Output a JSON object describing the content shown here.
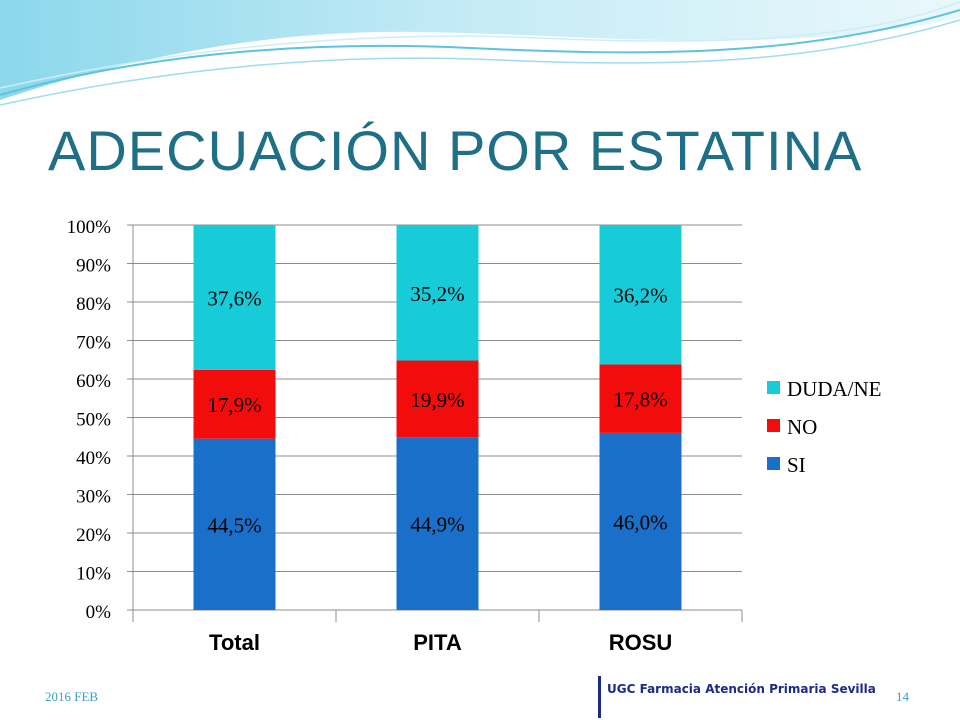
{
  "slide": {
    "title": "ADECUACIÓN POR ESTATINA",
    "footer_date": "2016 FEB",
    "footer_org": "UGC Farmacia Atención Primaria Sevilla",
    "page_number": "14"
  },
  "colors": {
    "title": "#1f6f86",
    "SI": "#1a6fc9",
    "NO": "#f20c0c",
    "DUDA/NE": "#17cbd9",
    "grid": "#8c8c8c"
  },
  "chart_data": {
    "type": "bar",
    "stacked": true,
    "categories": [
      "Total",
      "PITA",
      "ROSU"
    ],
    "series": [
      {
        "name": "SI",
        "values": [
          44.5,
          44.9,
          46.0
        ],
        "labels": [
          "44,5%",
          "44,9%",
          "46,0%"
        ]
      },
      {
        "name": "NO",
        "values": [
          17.9,
          19.9,
          17.8
        ],
        "labels": [
          "17,9%",
          "19,9%",
          "17,8%"
        ]
      },
      {
        "name": "DUDA/NE",
        "values": [
          37.6,
          35.2,
          36.2
        ],
        "labels": [
          "37,6%",
          "35,2%",
          "36,2%"
        ]
      }
    ],
    "ylim": [
      0,
      100
    ],
    "yticks": [
      "0%",
      "10%",
      "20%",
      "30%",
      "40%",
      "50%",
      "60%",
      "70%",
      "80%",
      "90%",
      "100%"
    ],
    "grid": true,
    "legend": {
      "position": "right",
      "order": [
        "DUDA/NE",
        "NO",
        "SI"
      ]
    },
    "title": "",
    "xlabel": "",
    "ylabel": ""
  }
}
